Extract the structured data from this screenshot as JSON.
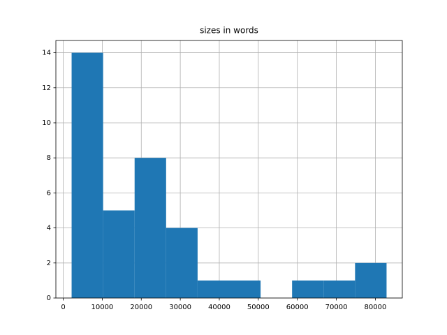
{
  "chart_data": {
    "type": "histogram",
    "title": "sizes in words",
    "bins": [
      2150,
      10222,
      18294,
      26366,
      34438,
      42510,
      50582,
      58654,
      66726,
      74798,
      82870
    ],
    "values": [
      14,
      5,
      8,
      4,
      1,
      1,
      0,
      1,
      1,
      2
    ],
    "color": "#1f77b4",
    "xlim": [
      -1886,
      86906
    ],
    "xticks": [
      0,
      10000,
      20000,
      30000,
      40000,
      50000,
      60000,
      70000,
      80000
    ],
    "ylim": [
      0,
      14.7
    ],
    "yticks": [
      0,
      2,
      4,
      6,
      8,
      10,
      12,
      14
    ],
    "grid": true
  }
}
